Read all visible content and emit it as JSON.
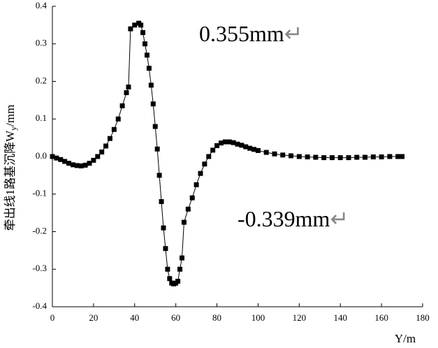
{
  "chart_data": {
    "type": "line",
    "ylabel": {
      "text": "牵出线1路基沉降W",
      "sub": "y",
      "unit": "/mm"
    },
    "xlabel": "Y/m",
    "annotations": [
      {
        "text": "0.355mm",
        "mark": "↵"
      },
      {
        "text": "-0.339mm",
        "mark": "↵"
      }
    ],
    "x": [
      0,
      2,
      4,
      6,
      8,
      10,
      12,
      14,
      16,
      18,
      20,
      22,
      24,
      26,
      28,
      30,
      32,
      34,
      36,
      37,
      38,
      40,
      42,
      43,
      44,
      45,
      46,
      47,
      48,
      49,
      50,
      51,
      52,
      53,
      54,
      55,
      56,
      57,
      58,
      59,
      60,
      61,
      62,
      63,
      64,
      66,
      68,
      70,
      72,
      74,
      76,
      78,
      80,
      82,
      84,
      86,
      88,
      90,
      92,
      94,
      96,
      98,
      100,
      104,
      108,
      112,
      116,
      120,
      124,
      128,
      132,
      136,
      140,
      144,
      148,
      152,
      156,
      160,
      164,
      168,
      170
    ],
    "series": [
      {
        "color": "#000000",
        "values": [
          0,
          -0.004,
          -0.008,
          -0.013,
          -0.018,
          -0.022,
          -0.024,
          -0.025,
          -0.023,
          -0.018,
          -0.01,
          0,
          0.012,
          0.028,
          0.048,
          0.072,
          0.1,
          0.135,
          0.17,
          0.185,
          0.34,
          0.35,
          0.355,
          0.35,
          0.33,
          0.3,
          0.27,
          0.235,
          0.19,
          0.14,
          0.08,
          0.02,
          -0.05,
          -0.12,
          -0.19,
          -0.245,
          -0.3,
          -0.325,
          -0.337,
          -0.339,
          -0.337,
          -0.332,
          -0.3,
          -0.27,
          -0.175,
          -0.14,
          -0.11,
          -0.075,
          -0.045,
          -0.02,
          0,
          0.017,
          0.029,
          0.036,
          0.039,
          0.039,
          0.037,
          0.033,
          0.03,
          0.026,
          0.022,
          0.019,
          0.016,
          0.011,
          0.007,
          0.004,
          0.002,
          0,
          -0.001,
          -0.002,
          -0.003,
          -0.003,
          -0.003,
          -0.003,
          -0.002,
          -0.002,
          -0.001,
          -0.001,
          0,
          0,
          0
        ]
      }
    ],
    "xlim": [
      0,
      180
    ],
    "xticks": [
      0,
      20,
      40,
      60,
      80,
      100,
      120,
      140,
      160,
      180
    ],
    "ylim": [
      -0.4,
      0.4
    ],
    "yticks": [
      0.4,
      0.3,
      0.2,
      0.1,
      {
        "value": 0,
        "label": "0.0"
      },
      -0.1,
      -0.2,
      -0.3,
      -0.4
    ],
    "grid": false
  }
}
